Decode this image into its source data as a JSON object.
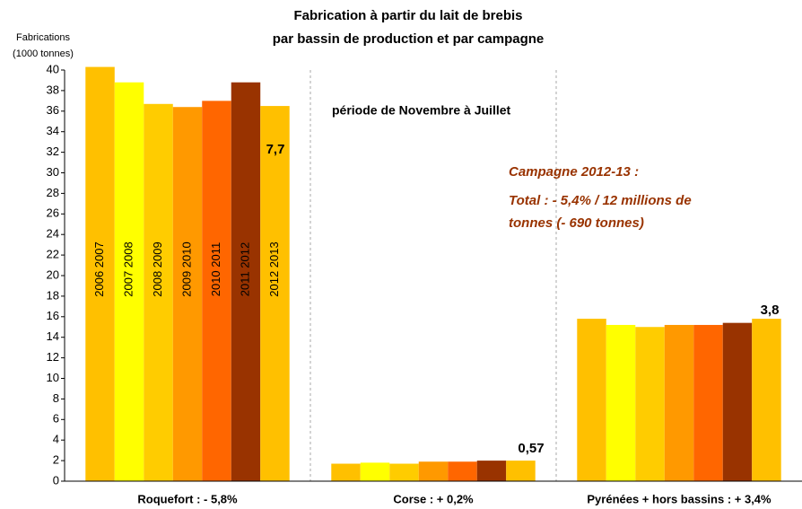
{
  "chart_data": {
    "type": "bar",
    "title": [
      "Fabrication à partir du lait de brebis",
      "par bassin de production et par campagne"
    ],
    "y_label": [
      "Fabrications",
      "(1000 tonnes)"
    ],
    "categories": [
      "Roquefort : - 5,8%",
      "Corse : + 0,2%",
      "Pyrénées + hors bassins : + 3,4%"
    ],
    "series": [
      {
        "name": "2006 2007",
        "color": "#FFC000",
        "values": [
          40.3,
          1.7,
          15.8
        ]
      },
      {
        "name": "2007 2008",
        "color": "#FFFF00",
        "values": [
          38.8,
          1.8,
          15.2
        ]
      },
      {
        "name": "2008 2009",
        "color": "#FFCC00",
        "values": [
          36.7,
          1.7,
          15.0
        ]
      },
      {
        "name": "2009 2010",
        "color": "#FF9900",
        "values": [
          36.4,
          1.9,
          15.2
        ]
      },
      {
        "name": "2010 2011",
        "color": "#FF6600",
        "values": [
          37.0,
          1.9,
          15.2
        ]
      },
      {
        "name": "2011 2012",
        "color": "#993300",
        "values": [
          38.8,
          2.0,
          15.4
        ]
      },
      {
        "name": "2012 2013",
        "color": "#FFC000",
        "values": [
          36.5,
          2.0,
          15.8
        ]
      }
    ],
    "ylim": [
      0,
      40
    ],
    "yticks": [
      0,
      2,
      4,
      6,
      8,
      10,
      12,
      14,
      16,
      18,
      20,
      22,
      24,
      26,
      28,
      30,
      32,
      34,
      36,
      38,
      40
    ],
    "annotations": [
      "7,7",
      "0,57",
      "3,8",
      "période de Novembre à Juillet",
      "Campagne 2012-13 :",
      "Total : - 5,4% / 12 millions de",
      "tonnes  (- 690 tonnes)"
    ]
  }
}
